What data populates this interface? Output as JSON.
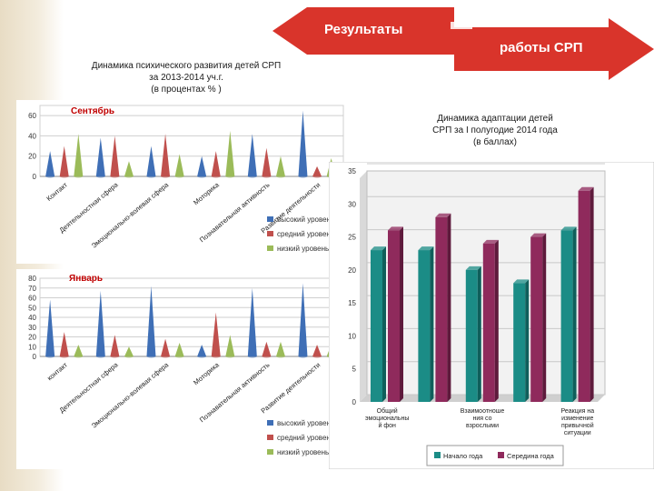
{
  "banners": {
    "left": "Результаты",
    "right": "работы СРП"
  },
  "colors": {
    "banner": "#d9342b",
    "high": "#3f6fb6",
    "medium": "#c0504d",
    "low": "#9bbb59",
    "start": "#1b8c86",
    "mid": "#8f2a5c",
    "month_label": "#c00000"
  },
  "left_title": {
    "line1": "Динамика психического развития детей СРП",
    "line2": "за  2013-2014 уч.г.",
    "line3": "(в процентах % )"
  },
  "right_title": {
    "line1": "Динамика адаптации детей",
    "line2": "СРП за  I полугодие 2014 года",
    "line3": "(в баллах)"
  },
  "chart_data": [
    {
      "type": "bar",
      "title": "Сентябрь",
      "categories": [
        "Контакт",
        "Деятельностная сфера",
        "Эмоционально-волевая сфера",
        "Моторика",
        "Познавательная активность",
        "Развитие деятельности"
      ],
      "series": [
        {
          "name": "высокий уровень",
          "values": [
            25,
            38,
            30,
            20,
            42,
            65
          ]
        },
        {
          "name": "средний уровень",
          "values": [
            30,
            40,
            42,
            25,
            28,
            10
          ]
        },
        {
          "name": "низкий уровень",
          "values": [
            42,
            15,
            22,
            45,
            20,
            18
          ]
        }
      ],
      "yticks": [
        0,
        20,
        40,
        60
      ],
      "ylim": [
        0,
        70
      ]
    },
    {
      "type": "bar",
      "title": "Январь",
      "categories": [
        "контакт",
        "Деятельностная сфера",
        "Эмоционально-волевая сфера",
        "Моторика",
        "Познавательная активность",
        "Развитие деятельности"
      ],
      "series": [
        {
          "name": "высокий уровень",
          "values": [
            58,
            67,
            72,
            12,
            70,
            75
          ]
        },
        {
          "name": "средний уровень",
          "values": [
            25,
            22,
            18,
            45,
            15,
            12
          ]
        },
        {
          "name": "низкий уровень",
          "values": [
            12,
            10,
            14,
            22,
            15,
            12
          ]
        }
      ],
      "yticks": [
        0,
        10,
        20,
        30,
        40,
        50,
        60,
        70,
        80
      ],
      "ylim": [
        0,
        80
      ]
    },
    {
      "type": "bar",
      "title": "Динамика адаптации детей СРП за I полугодие 2014 года (в баллах)",
      "categories": [
        "Общий эмоциональны й фон",
        "",
        "Взаимоотноше ния со взрослыми",
        "",
        "Реакция на изменение привычной ситуации"
      ],
      "series": [
        {
          "name": "Начало года",
          "values": [
            23,
            23,
            20,
            18,
            26
          ]
        },
        {
          "name": "Середина года",
          "values": [
            26,
            28,
            24,
            25,
            32
          ]
        }
      ],
      "yticks": [
        0,
        5,
        10,
        15,
        20,
        25,
        30,
        35
      ],
      "ylim": [
        0,
        35
      ]
    }
  ]
}
